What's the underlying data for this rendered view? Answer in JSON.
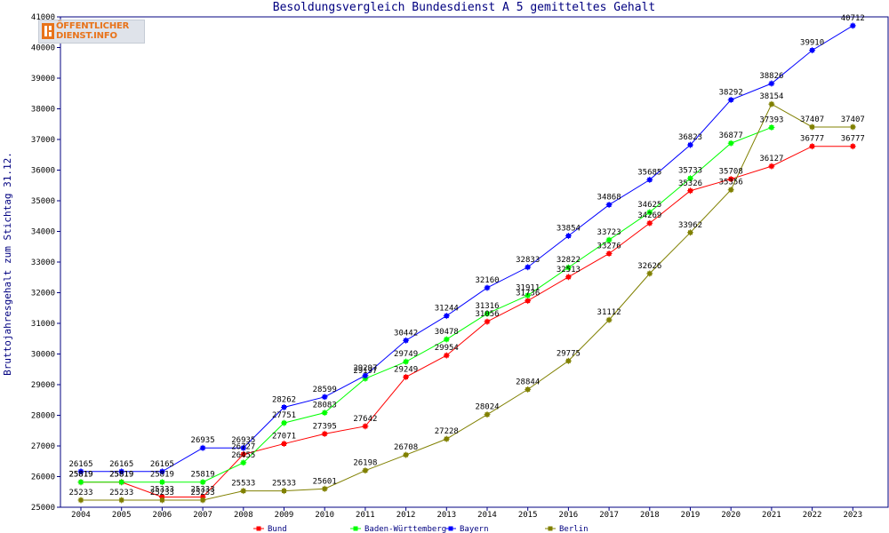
{
  "chart_data": {
    "type": "line",
    "title": "Besoldungsvergleich Bundesdienst A 5 gemitteltes Gehalt",
    "ylabel": "Bruttojahresgehalt zum Stichtag 31.12.",
    "xlabel": "",
    "categories": [
      "2004",
      "2005",
      "2006",
      "2007",
      "2008",
      "2009",
      "2010",
      "2011",
      "2012",
      "2013",
      "2014",
      "2015",
      "2016",
      "2017",
      "2018",
      "2019",
      "2020",
      "2021",
      "2022",
      "2023"
    ],
    "ylim": [
      25000,
      41000
    ],
    "yticks": [
      "25000",
      "26000",
      "27000",
      "28000",
      "29000",
      "30000",
      "31000",
      "32000",
      "33000",
      "34000",
      "35000",
      "36000",
      "37000",
      "38000",
      "39000",
      "40000",
      "41000"
    ],
    "grid": false,
    "legend_position": "bottom",
    "series": [
      {
        "name": "Bund",
        "color": "#ff0000",
        "values": [
          25819,
          25819,
          25333,
          25333,
          26727,
          27071,
          27395,
          27642,
          29249,
          29954,
          31056,
          31736,
          32513,
          33276,
          34269,
          35326,
          35708,
          36127,
          36777,
          36777
        ]
      },
      {
        "name": "Baden-Württemberg",
        "color": "#00ff00",
        "values": [
          25819,
          25819,
          25819,
          25819,
          26455,
          27751,
          28083,
          29197,
          29749,
          30478,
          31316,
          31911,
          32822,
          33723,
          34625,
          35733,
          36877,
          37393,
          null,
          null
        ]
      },
      {
        "name": "Bayern",
        "color": "#0000ff",
        "values": [
          26165,
          26165,
          26165,
          26935,
          26935,
          28262,
          28599,
          29297,
          30442,
          31244,
          32160,
          32833,
          33854,
          34868,
          35685,
          36823,
          38292,
          38826,
          39910,
          40712
        ]
      },
      {
        "name": "Berlin",
        "color": "#808000",
        "values": [
          25233,
          25233,
          25233,
          25233,
          25533,
          25533,
          25601,
          26198,
          26708,
          27228,
          28024,
          28844,
          29775,
          31112,
          32626,
          33962,
          35356,
          38154,
          37407,
          37407
        ]
      }
    ],
    "data_labels": [
      [
        "25819",
        "25819",
        "25333",
        "25333",
        "26727",
        "27071",
        "27395",
        "27642",
        "29249",
        "29954",
        "31056",
        "31736",
        "32513",
        "33276",
        "34269",
        "35326",
        "35708",
        "36127",
        "36777",
        "36777"
      ],
      [
        "25819",
        "25819",
        "25819",
        "25819",
        "26455",
        "27751",
        "28083",
        "29197",
        "29749",
        "30478",
        "31316",
        "31911",
        "32822",
        "33723",
        "34625",
        "35733",
        "36877",
        "37393",
        null,
        null
      ],
      [
        "26165",
        "26165",
        "26165",
        "26935",
        "26935",
        "28262",
        "28599",
        "29297",
        "30442",
        "31244",
        "32160",
        "32833",
        "33854",
        "34868",
        "35685",
        "36823",
        "38292",
        "38826",
        "39910",
        "40712"
      ],
      [
        "25233",
        "25233",
        "25233",
        "25233",
        "25533",
        "25533",
        "25601",
        "26198",
        "26708",
        "27228",
        "28024",
        "28844",
        "29775",
        "31112",
        "32626",
        "33962",
        "35356",
        "38154",
        "37407",
        "37407"
      ]
    ]
  },
  "logo": {
    "line1": "ÖFFENTLICHER",
    "line2": "DIENST.INFO"
  },
  "colors": {
    "axis": "#000080",
    "background": "#ffffff"
  }
}
